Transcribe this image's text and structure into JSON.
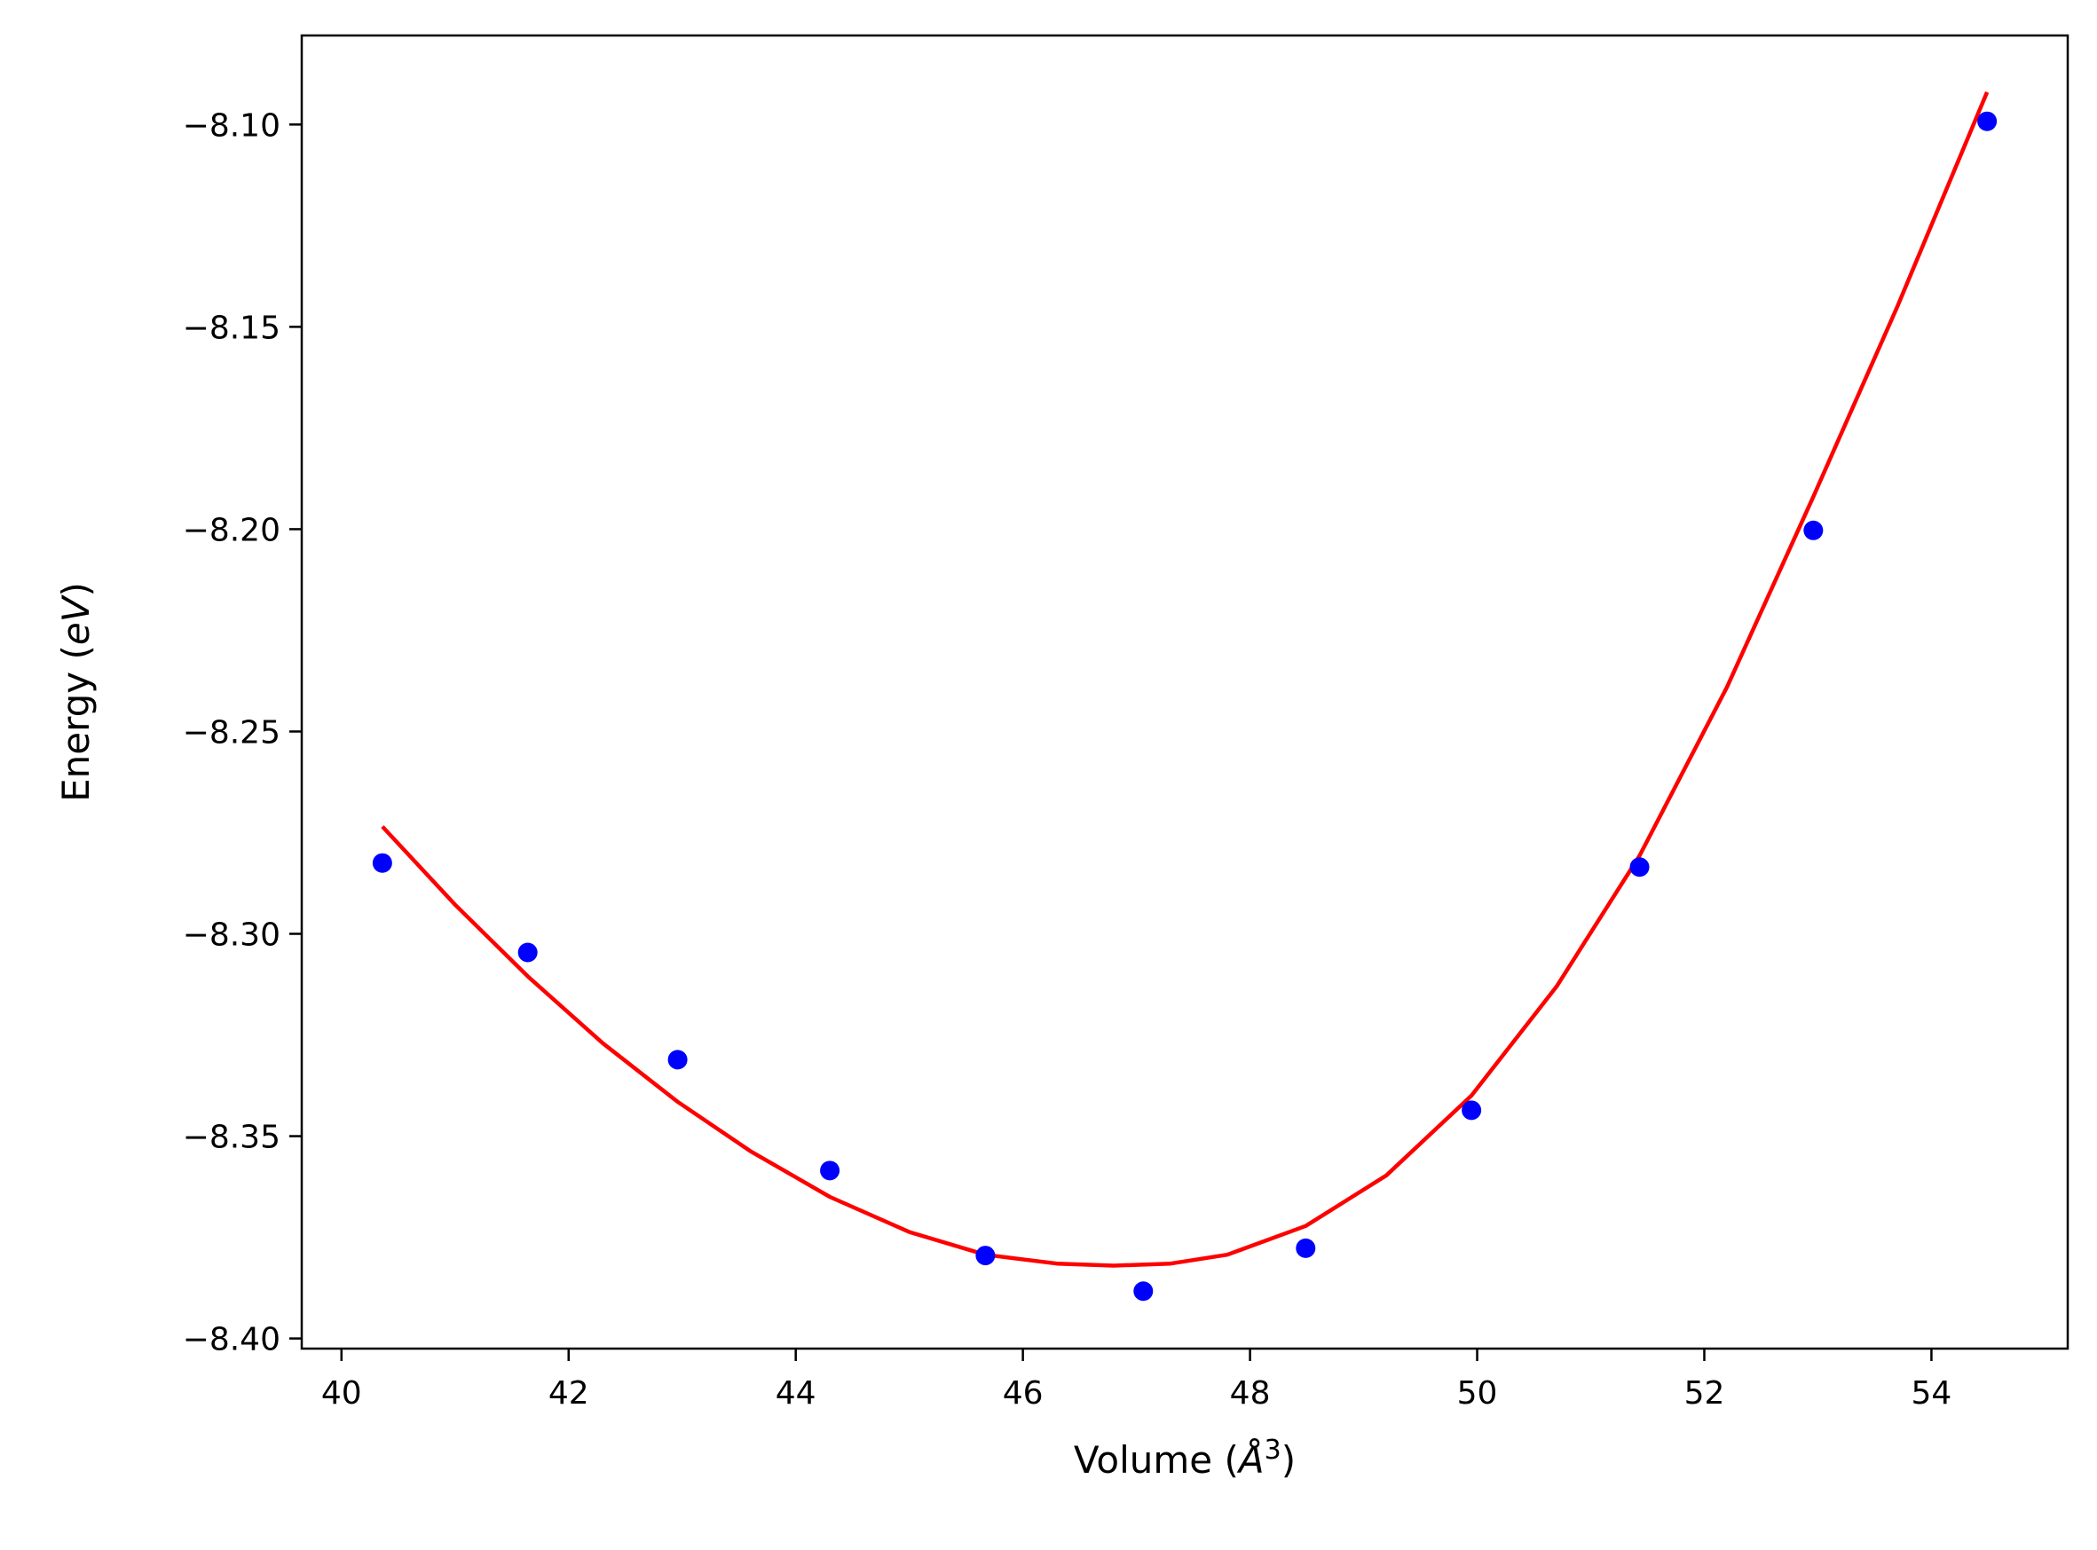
{
  "chart_data": {
    "type": "scatter",
    "xlabel": "Volume (",
    "xlabel_symbol": "Å",
    "xlabel_power": "3",
    "xlabel_close": ")",
    "ylabel": "Energy (",
    "ylabel_unit": "eV",
    "ylabel_close": ")",
    "xlim": [
      39.65,
      55.2
    ],
    "ylim": [
      -8.4025,
      -8.078
    ],
    "x_ticks": [
      40,
      42,
      44,
      46,
      48,
      50,
      52,
      54
    ],
    "x_tick_labels": [
      "40",
      "42",
      "44",
      "46",
      "48",
      "50",
      "52",
      "54"
    ],
    "y_ticks": [
      -8.1,
      -8.15,
      -8.2,
      -8.25,
      -8.3,
      -8.35,
      -8.4
    ],
    "y_tick_labels": [
      "−8.10",
      "−8.15",
      "−8.20",
      "−8.25",
      "−8.30",
      "−8.35",
      "−8.40"
    ],
    "grid": false,
    "series": [
      {
        "kind": "points",
        "color": "#0000ff",
        "x": [
          40.36,
          41.64,
          42.96,
          44.3,
          45.67,
          47.06,
          48.49,
          49.95,
          51.43,
          52.96,
          54.49
        ],
        "y": [
          -8.2825,
          -8.3046,
          -8.3311,
          -8.3585,
          -8.3795,
          -8.3883,
          -8.3777,
          -8.3436,
          -8.2835,
          -8.2003,
          -8.0992
        ]
      },
      {
        "kind": "line",
        "color": "#ff0000",
        "x": [
          40.36,
          41.0,
          41.64,
          42.3,
          42.96,
          43.6,
          44.3,
          45.0,
          45.67,
          46.3,
          46.8,
          47.3,
          47.8,
          48.49,
          49.2,
          49.95,
          50.7,
          51.43,
          52.2,
          52.96,
          53.7,
          54.49
        ],
        "y": [
          -8.2735,
          -8.2928,
          -8.3105,
          -8.327,
          -8.3415,
          -8.3537,
          -8.365,
          -8.3737,
          -8.3793,
          -8.3815,
          -8.382,
          -8.3815,
          -8.3793,
          -8.3722,
          -8.3597,
          -8.34,
          -8.313,
          -8.2807,
          -8.239,
          -8.192,
          -8.145,
          -8.092
        ]
      }
    ]
  }
}
